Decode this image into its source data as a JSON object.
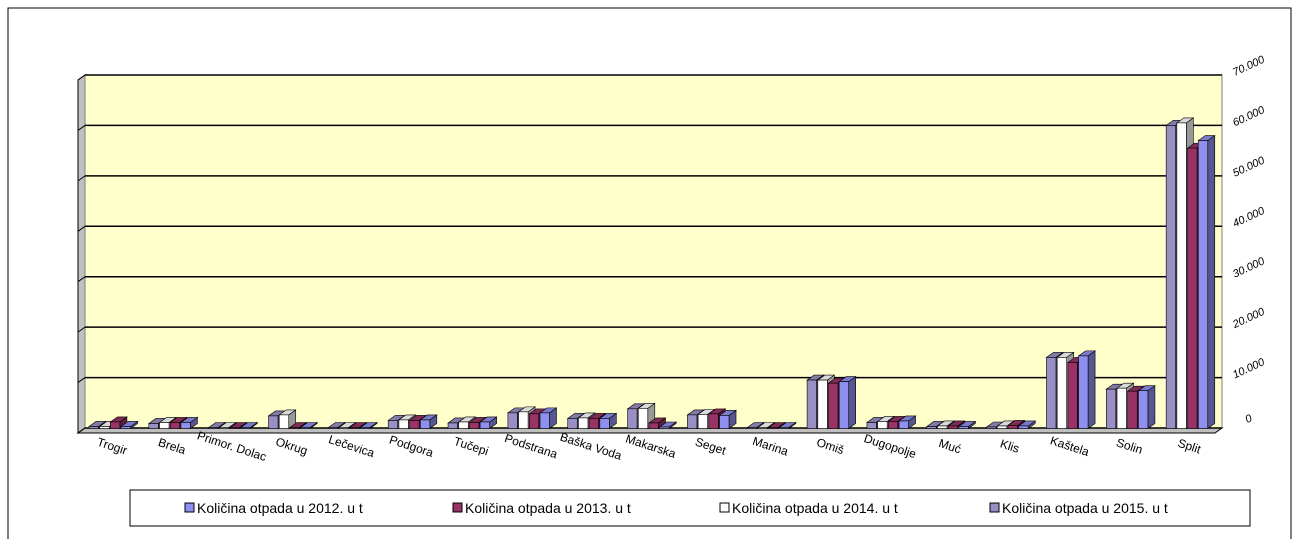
{
  "chart_data": {
    "type": "bar3d",
    "categories": [
      "Trogir",
      "Brela",
      "Primor. Dolac",
      "Okrug",
      "Lečevica",
      "Podgora",
      "Tučepi",
      "Podstrana",
      "Baška Voda",
      "Makarska",
      "Seget",
      "Marina",
      "Omiš",
      "Dugopolje",
      "Muć",
      "Klis",
      "Kaštela",
      "Solin",
      "Split"
    ],
    "series": [
      {
        "name": "Količina otpada u 2012.  u t",
        "color": "#8f8ff0",
        "values": [
          300,
          1100,
          100,
          100,
          100,
          1600,
          1200,
          3000,
          1900,
          200,
          2500,
          100,
          9200,
          1400,
          300,
          400,
          14300,
          7400,
          57000
        ]
      },
      {
        "name": "Količina otpada u 2013.  u t",
        "color": "#993366",
        "values": [
          1200,
          1100,
          100,
          100,
          100,
          1500,
          1100,
          2800,
          1900,
          1000,
          2800,
          100,
          8900,
          1300,
          400,
          500,
          13000,
          7300,
          55500
        ]
      },
      {
        "name": "Količina otpada u 2014.  u t",
        "color": "#ffffff",
        "values": [
          300,
          1100,
          100,
          2600,
          100,
          1600,
          1200,
          3200,
          2000,
          3900,
          2700,
          100,
          9500,
          1300,
          400,
          400,
          14000,
          7900,
          60500
        ]
      },
      {
        "name": "Količina otpada u 2015.  u t",
        "color": "#9a8fc4",
        "values": [
          300,
          900,
          100,
          2400,
          100,
          1500,
          1000,
          3000,
          1900,
          3800,
          2600,
          100,
          9500,
          1100,
          300,
          200,
          14000,
          7700,
          60000
        ]
      }
    ],
    "ylim": [
      0,
      70000
    ],
    "yticks": [
      0,
      {
        "value": 10000,
        "label": "10.000"
      },
      {
        "value": 20000,
        "label": "20.000"
      },
      {
        "value": 30000,
        "label": "30.000"
      },
      {
        "value": 40000,
        "label": "40.000"
      },
      {
        "value": 50000,
        "label": "50.000"
      },
      {
        "value": 60000,
        "label": "60.000"
      },
      {
        "value": 70000,
        "label": "70.000"
      }
    ],
    "grid": true,
    "legend": "bottom",
    "wall_color": "#ffffcc"
  }
}
